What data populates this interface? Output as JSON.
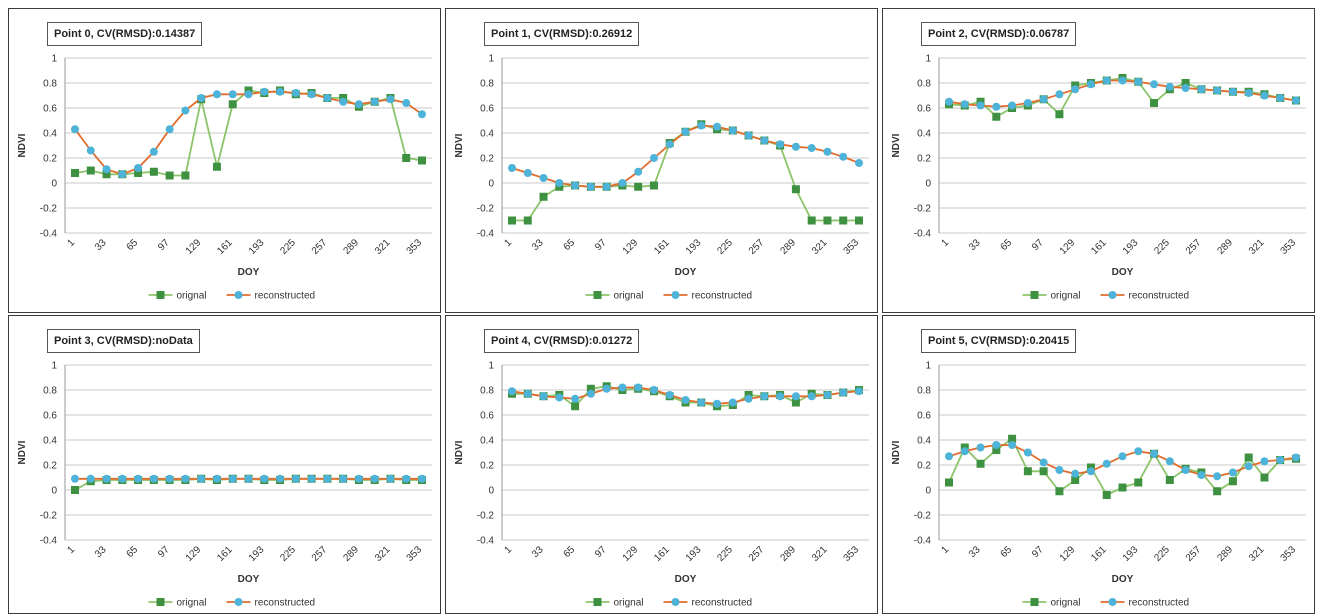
{
  "chart_data": [
    {
      "type": "line",
      "title": "Point 0, CV(RMSD):0.14387",
      "xlabel": "DOY",
      "ylabel": "NDVI",
      "ylim": [
        -0.4,
        1
      ],
      "yticks": [
        "-0.4",
        "-0.2",
        "0",
        "0.2",
        "0.4",
        "0.6",
        "0.8",
        "1"
      ],
      "xticks": [
        "1",
        "33",
        "65",
        "97",
        "129",
        "161",
        "193",
        "225",
        "257",
        "289",
        "321",
        "353"
      ],
      "grid": true,
      "legend": "bottom",
      "x": [
        1,
        17,
        33,
        49,
        65,
        81,
        97,
        113,
        129,
        145,
        161,
        177,
        193,
        209,
        225,
        241,
        257,
        273,
        289,
        305,
        321,
        337,
        353
      ],
      "series": [
        {
          "name": "orignal",
          "color": "#3f9142",
          "marker": "square",
          "values": [
            0.08,
            0.1,
            0.07,
            0.07,
            0.08,
            0.09,
            0.06,
            0.06,
            0.67,
            0.13,
            0.63,
            0.74,
            0.72,
            0.74,
            0.71,
            0.72,
            0.68,
            0.68,
            0.61,
            0.65,
            0.68,
            0.2,
            0.18
          ]
        },
        {
          "name": "reconstructed",
          "color": "#4eb3d8",
          "line": "#e36c2d",
          "marker": "circle",
          "values": [
            0.43,
            0.26,
            0.11,
            0.07,
            0.12,
            0.25,
            0.43,
            0.58,
            0.68,
            0.71,
            0.71,
            0.71,
            0.73,
            0.73,
            0.72,
            0.71,
            0.68,
            0.65,
            0.63,
            0.65,
            0.67,
            0.64,
            0.55
          ]
        }
      ]
    },
    {
      "type": "line",
      "title": "Point 1, CV(RMSD):0.26912",
      "xlabel": "DOY",
      "ylabel": "NDVI",
      "ylim": [
        -0.4,
        1
      ],
      "yticks": [
        "-0.4",
        "-0.2",
        "0",
        "0.2",
        "0.4",
        "0.6",
        "0.8",
        "1"
      ],
      "xticks": [
        "1",
        "33",
        "65",
        "97",
        "129",
        "161",
        "193",
        "225",
        "257",
        "289",
        "321",
        "353"
      ],
      "grid": true,
      "legend": "bottom",
      "x": [
        1,
        17,
        33,
        49,
        65,
        81,
        97,
        113,
        129,
        145,
        161,
        177,
        193,
        209,
        225,
        241,
        257,
        273,
        289,
        305,
        321,
        337,
        353
      ],
      "series": [
        {
          "name": "orignal",
          "color": "#3f9142",
          "marker": "square",
          "values": [
            -0.3,
            -0.3,
            -0.11,
            -0.03,
            -0.02,
            -0.03,
            -0.03,
            -0.02,
            -0.03,
            -0.02,
            0.32,
            0.41,
            0.47,
            0.43,
            0.42,
            0.38,
            0.34,
            0.3,
            -0.05,
            -0.3,
            -0.3,
            -0.3,
            -0.3
          ]
        },
        {
          "name": "reconstructed",
          "color": "#4eb3d8",
          "line": "#e36c2d",
          "marker": "circle",
          "values": [
            0.12,
            0.08,
            0.04,
            0.0,
            -0.02,
            -0.03,
            -0.03,
            0.0,
            0.09,
            0.2,
            0.31,
            0.41,
            0.46,
            0.45,
            0.42,
            0.38,
            0.34,
            0.31,
            0.29,
            0.28,
            0.25,
            0.21,
            0.16
          ]
        }
      ]
    },
    {
      "type": "line",
      "title": "Point 2, CV(RMSD):0.06787",
      "xlabel": "DOY",
      "ylabel": "NDVI",
      "ylim": [
        -0.4,
        1
      ],
      "yticks": [
        "-0.4",
        "-0.2",
        "0",
        "0.2",
        "0.4",
        "0.6",
        "0.8",
        "1"
      ],
      "xticks": [
        "1",
        "33",
        "65",
        "97",
        "129",
        "161",
        "193",
        "225",
        "257",
        "289",
        "321",
        "353"
      ],
      "grid": true,
      "legend": "bottom",
      "x": [
        1,
        17,
        33,
        49,
        65,
        81,
        97,
        113,
        129,
        145,
        161,
        177,
        193,
        209,
        225,
        241,
        257,
        273,
        289,
        305,
        321,
        337,
        353
      ],
      "series": [
        {
          "name": "orignal",
          "color": "#3f9142",
          "marker": "square",
          "values": [
            0.63,
            0.62,
            0.65,
            0.53,
            0.6,
            0.62,
            0.67,
            0.55,
            0.78,
            0.8,
            0.82,
            0.84,
            0.81,
            0.64,
            0.75,
            0.8,
            0.75,
            0.74,
            0.73,
            0.73,
            0.71,
            0.68,
            0.66
          ]
        },
        {
          "name": "reconstructed",
          "color": "#4eb3d8",
          "line": "#e36c2d",
          "marker": "circle",
          "values": [
            0.65,
            0.63,
            0.62,
            0.61,
            0.62,
            0.64,
            0.67,
            0.71,
            0.75,
            0.79,
            0.82,
            0.82,
            0.81,
            0.79,
            0.77,
            0.76,
            0.75,
            0.74,
            0.73,
            0.72,
            0.7,
            0.68,
            0.66
          ]
        }
      ]
    },
    {
      "type": "line",
      "title": "Point 3, CV(RMSD):noData",
      "xlabel": "DOY",
      "ylabel": "NDVI",
      "ylim": [
        -0.4,
        1
      ],
      "yticks": [
        "-0.4",
        "-0.2",
        "0",
        "0.2",
        "0.4",
        "0.6",
        "0.8",
        "1"
      ],
      "xticks": [
        "1",
        "33",
        "65",
        "97",
        "129",
        "161",
        "193",
        "225",
        "257",
        "289",
        "321",
        "353"
      ],
      "grid": true,
      "legend": "bottom",
      "x": [
        1,
        17,
        33,
        49,
        65,
        81,
        97,
        113,
        129,
        145,
        161,
        177,
        193,
        209,
        225,
        241,
        257,
        273,
        289,
        305,
        321,
        337,
        353
      ],
      "series": [
        {
          "name": "orignal",
          "color": "#3f9142",
          "marker": "square",
          "values": [
            0.0,
            0.07,
            0.08,
            0.08,
            0.08,
            0.08,
            0.08,
            0.08,
            0.09,
            0.08,
            0.09,
            0.09,
            0.08,
            0.08,
            0.09,
            0.09,
            0.09,
            0.09,
            0.08,
            0.08,
            0.09,
            0.08,
            0.08
          ]
        },
        {
          "name": "reconstructed",
          "color": "#4eb3d8",
          "line": "#e36c2d",
          "marker": "circle",
          "values": [
            0.09,
            0.09,
            0.09,
            0.09,
            0.09,
            0.09,
            0.09,
            0.09,
            0.09,
            0.09,
            0.09,
            0.09,
            0.09,
            0.09,
            0.09,
            0.09,
            0.09,
            0.09,
            0.09,
            0.09,
            0.09,
            0.09,
            0.09
          ]
        }
      ]
    },
    {
      "type": "line",
      "title": "Point 4, CV(RMSD):0.01272",
      "xlabel": "DOY",
      "ylabel": "NDVI",
      "ylim": [
        -0.4,
        1
      ],
      "yticks": [
        "-0.4",
        "-0.2",
        "0",
        "0.2",
        "0.4",
        "0.6",
        "0.8",
        "1"
      ],
      "xticks": [
        "1",
        "33",
        "65",
        "97",
        "129",
        "161",
        "193",
        "225",
        "257",
        "289",
        "321",
        "353"
      ],
      "grid": true,
      "legend": "bottom",
      "x": [
        1,
        17,
        33,
        49,
        65,
        81,
        97,
        113,
        129,
        145,
        161,
        177,
        193,
        209,
        225,
        241,
        257,
        273,
        289,
        305,
        321,
        337,
        353
      ],
      "series": [
        {
          "name": "orignal",
          "color": "#3f9142",
          "marker": "square",
          "values": [
            0.77,
            0.77,
            0.75,
            0.76,
            0.67,
            0.81,
            0.83,
            0.8,
            0.81,
            0.79,
            0.75,
            0.7,
            0.7,
            0.67,
            0.68,
            0.76,
            0.75,
            0.76,
            0.7,
            0.77,
            0.76,
            0.78,
            0.8
          ]
        },
        {
          "name": "reconstructed",
          "color": "#4eb3d8",
          "line": "#e36c2d",
          "marker": "circle",
          "values": [
            0.79,
            0.77,
            0.75,
            0.74,
            0.73,
            0.77,
            0.81,
            0.82,
            0.82,
            0.8,
            0.76,
            0.72,
            0.7,
            0.69,
            0.7,
            0.73,
            0.75,
            0.75,
            0.75,
            0.75,
            0.76,
            0.78,
            0.79
          ]
        }
      ]
    },
    {
      "type": "line",
      "title": "Point 5, CV(RMSD):0.20415",
      "xlabel": "DOY",
      "ylabel": "NDVI",
      "ylim": [
        -0.4,
        1
      ],
      "yticks": [
        "-0.4",
        "-0.2",
        "0",
        "0.2",
        "0.4",
        "0.6",
        "0.8",
        "1"
      ],
      "xticks": [
        "1",
        "33",
        "65",
        "97",
        "129",
        "161",
        "193",
        "225",
        "257",
        "289",
        "321",
        "353"
      ],
      "grid": true,
      "legend": "bottom",
      "x": [
        1,
        17,
        33,
        49,
        65,
        81,
        97,
        113,
        129,
        145,
        161,
        177,
        193,
        209,
        225,
        241,
        257,
        273,
        289,
        305,
        321,
        337,
        353
      ],
      "series": [
        {
          "name": "orignal",
          "color": "#3f9142",
          "marker": "square",
          "values": [
            0.06,
            0.34,
            0.21,
            0.32,
            0.41,
            0.15,
            0.15,
            -0.01,
            0.08,
            0.18,
            -0.04,
            0.02,
            0.06,
            0.29,
            0.08,
            0.17,
            0.14,
            -0.01,
            0.07,
            0.26,
            0.1,
            0.24,
            0.25
          ]
        },
        {
          "name": "reconstructed",
          "color": "#4eb3d8",
          "line": "#e36c2d",
          "marker": "circle",
          "values": [
            0.27,
            0.31,
            0.34,
            0.36,
            0.36,
            0.3,
            0.22,
            0.16,
            0.13,
            0.15,
            0.21,
            0.27,
            0.31,
            0.29,
            0.23,
            0.16,
            0.12,
            0.11,
            0.14,
            0.19,
            0.23,
            0.24,
            0.26
          ]
        }
      ]
    }
  ]
}
